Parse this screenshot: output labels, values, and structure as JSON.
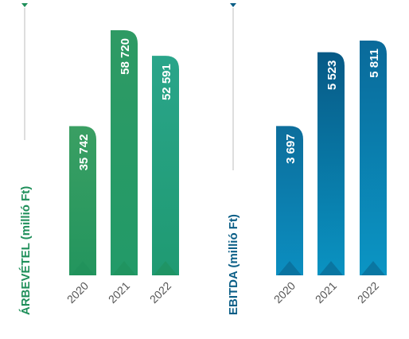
{
  "chart_data": [
    {
      "type": "bar",
      "ylabel": "ÁRBEVÉTEL (millió Ft)",
      "categories": [
        "2020",
        "2021",
        "2022"
      ],
      "values": [
        35742,
        58720,
        52591
      ],
      "value_labels": [
        "35 742",
        "58 720",
        "52 591"
      ],
      "color": "#2e9d6a",
      "accent": "#1f8f5a"
    },
    {
      "type": "bar",
      "ylabel": "EBITDA (millió Ft)",
      "categories": [
        "2020",
        "2021",
        "2022"
      ],
      "values": [
        3697,
        5523,
        5811
      ],
      "value_labels": [
        "3 697",
        "5 523",
        "5 811"
      ],
      "color": "#0a6fa0",
      "accent": "#0b5e86"
    }
  ]
}
